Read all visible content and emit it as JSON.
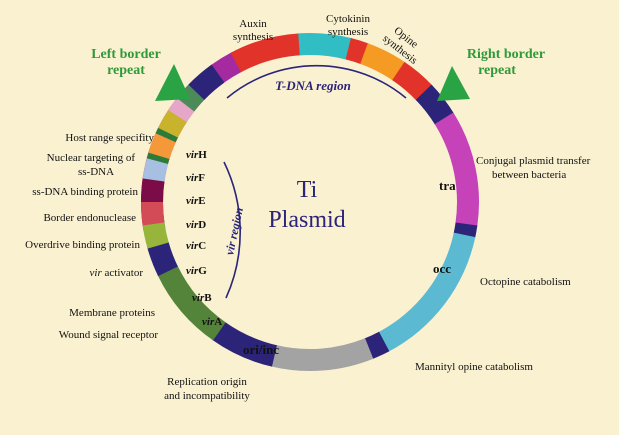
{
  "center": {
    "line1": "Ti",
    "line2": "Plasmid"
  },
  "border_markers": {
    "left": {
      "line1": "Left border",
      "line2": "repeat"
    },
    "right": {
      "line1": "Right border",
      "line2": "repeat"
    }
  },
  "region_labels": {
    "tdna": "T-DNA region",
    "vir": "vir region"
  },
  "segment_labels": {
    "auxin": {
      "line1": "Auxin",
      "line2": "synthesis"
    },
    "cytokinin": {
      "line1": "Cytokinin",
      "line2": "synthesis"
    },
    "opine": {
      "line1": "Opine",
      "line2": "synthesis"
    },
    "tra": "tra",
    "conjugal": {
      "line1": "Conjugal plasmid transfer",
      "line2": "between bacteria"
    },
    "occ": "occ",
    "octopine": "Octopine catabolism",
    "mannityl": "Mannityl opine catabolism",
    "oriinc": "ori/inc",
    "replication": {
      "line1": "Replication origin",
      "line2": "and incompatibility"
    },
    "host_range": "Host range specifity",
    "nuclear": {
      "line1": "Nuclear targeting of",
      "line2": "ss-DNA"
    },
    "ssdna": "ss-DNA binding protein",
    "border_endo": "Border endonuclease",
    "overdrive": "Overdrive binding protein",
    "activator": {
      "italic": "vir",
      "rest": " activator"
    },
    "membrane": "Membrane proteins",
    "wound": "Wound signal receptor"
  },
  "vir_genes": [
    {
      "prefix": "vir",
      "suffix": "H"
    },
    {
      "prefix": "vir",
      "suffix": "F"
    },
    {
      "prefix": "vir",
      "suffix": "E"
    },
    {
      "prefix": "vir",
      "suffix": "D"
    },
    {
      "prefix": "vir",
      "suffix": "C"
    },
    {
      "prefix": "vir",
      "suffix": "G"
    },
    {
      "prefix": "vir",
      "suffix": "B"
    },
    {
      "prefix": "vir",
      "suffix": "A"
    }
  ],
  "colors": {
    "background": "#faf1d1",
    "navy": "#2b2479",
    "red": "#e2332a",
    "purple": "#a52aa0",
    "cyan": "#31bdc4",
    "orange": "#f59a22",
    "magenta": "#c542b8",
    "light_blue": "#5bbad2",
    "gray": "#a3a3a3",
    "green": "#54843a",
    "marker_green": "#2aa344",
    "label_green": "#2e9a3a"
  }
}
